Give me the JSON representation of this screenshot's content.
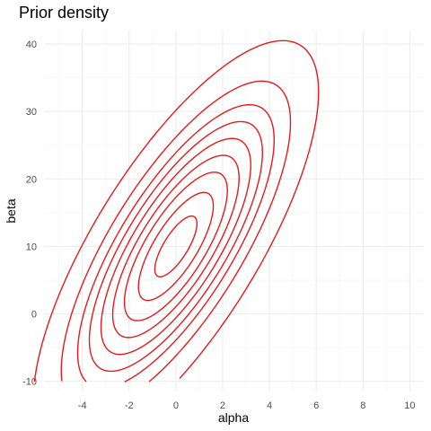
{
  "chart_data": {
    "type": "contour",
    "title": "Prior density",
    "xlabel": "alpha",
    "ylabel": "beta",
    "xlim": [
      -5.6,
      10.6
    ],
    "ylim": [
      -11.5,
      42
    ],
    "x_ticks": [
      -4,
      -2,
      0,
      2,
      4,
      6,
      8,
      10
    ],
    "y_ticks": [
      -10,
      0,
      10,
      20,
      30,
      40
    ],
    "grid": true,
    "legend": "none",
    "line_color": "#e41a1c",
    "distribution": {
      "mean": [
        0,
        10
      ],
      "sd": [
        2,
        10
      ],
      "correlation": 0.75
    },
    "contour_levels_mahalanobis": [
      0.45,
      0.8,
      1.1,
      1.35,
      1.6,
      1.85,
      2.1,
      2.45,
      3.05
    ]
  }
}
